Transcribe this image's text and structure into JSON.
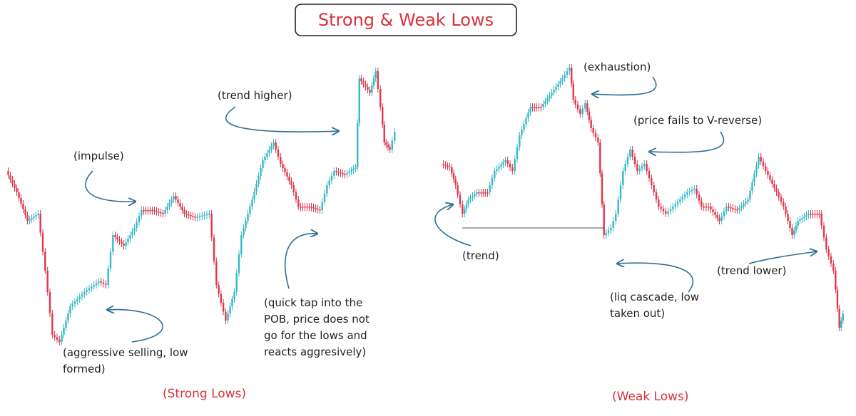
{
  "title": "Strong & Weak Lows",
  "left": {
    "label": "(Strong Lows)",
    "annotations": [
      {
        "lines": [
          "(impulse)"
        ]
      },
      {
        "lines": [
          "(trend higher)"
        ]
      },
      {
        "lines": [
          "(aggressive selling, low",
          "formed)"
        ]
      },
      {
        "lines": [
          "(quick tap into the",
          "POB, price does not",
          "go for the lows and",
          "reacts aggresively)"
        ]
      }
    ]
  },
  "right": {
    "label": "(Weak Lows)",
    "annotations": [
      {
        "lines": [
          "(exhaustion)"
        ]
      },
      {
        "lines": [
          "(price fails to V-reverse)"
        ]
      },
      {
        "lines": [
          "(trend)"
        ]
      },
      {
        "lines": [
          "(liq cascade, low",
          "taken out)"
        ]
      },
      {
        "lines": [
          "(trend lower)"
        ]
      }
    ]
  }
}
